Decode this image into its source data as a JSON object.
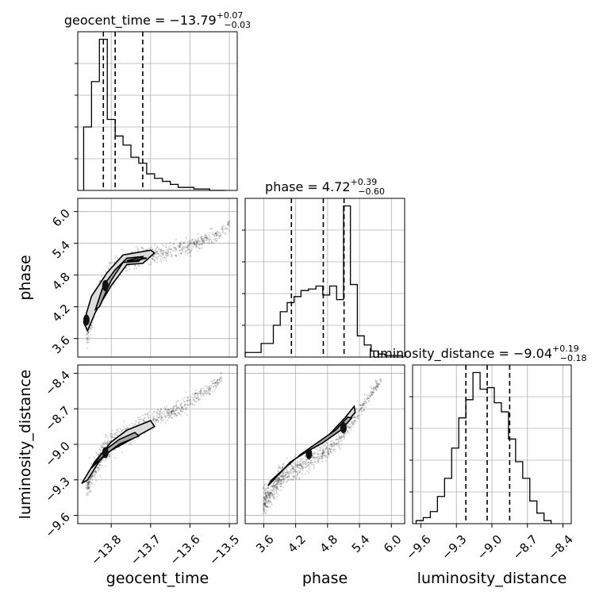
{
  "chart_data": {
    "type": "corner",
    "parameters": [
      "geocent_time",
      "phase",
      "luminosity_distance"
    ],
    "titles": [
      {
        "param": "geocent_time",
        "text": "geocent_time = −13.79",
        "plus": "+0.07",
        "minus": "−0.03"
      },
      {
        "param": "phase",
        "text": "phase = 4.72",
        "plus": "+0.39",
        "minus": "−0.60"
      },
      {
        "param": "luminosity_distance",
        "text": "luminosity_distance = −9.04",
        "plus": "+0.19",
        "minus": "−0.18"
      }
    ],
    "axes": {
      "geocent_time": {
        "label": "geocent_time",
        "range": [
          -13.885,
          -13.48
        ],
        "ticks": [
          -13.8,
          -13.7,
          -13.6,
          -13.5
        ],
        "tick_labels": [
          "−13.8",
          "−13.7",
          "−13.6",
          "−13.5"
        ]
      },
      "phase": {
        "label": "phase",
        "range": [
          3.25,
          6.25
        ],
        "ticks": [
          3.6,
          4.2,
          4.8,
          5.4,
          6.0
        ],
        "tick_labels": [
          "3.6",
          "4.2",
          "4.8",
          "5.4",
          "6.0"
        ]
      },
      "luminosity_distance": {
        "label": "luminosity_distance",
        "range": [
          -9.67,
          -8.33
        ],
        "ticks": [
          -9.6,
          -9.3,
          -9.0,
          -8.7,
          -8.4
        ],
        "tick_labels": [
          "−9.6",
          "−9.3",
          "−9.0",
          "−8.7",
          "−8.4"
        ]
      }
    },
    "histograms": {
      "geocent_time": {
        "edges": [
          -13.87,
          -13.85,
          -13.83,
          -13.81,
          -13.79,
          -13.77,
          -13.75,
          -13.73,
          -13.71,
          -13.69,
          -13.67,
          -13.65,
          -13.63,
          -13.61,
          -13.59,
          -13.57,
          -13.55,
          -13.53,
          -13.51
        ],
        "counts": [
          0.42,
          0.72,
          1.0,
          0.47,
          0.36,
          0.3,
          0.22,
          0.18,
          0.11,
          0.08,
          0.06,
          0.04,
          0.02,
          0.02,
          0.01,
          0.01,
          0.0,
          0.0
        ],
        "quantiles": [
          -13.82,
          -13.79,
          -13.72
        ]
      },
      "phase": {
        "edges": [
          3.25,
          3.55,
          3.78,
          3.91,
          4.04,
          4.17,
          4.3,
          4.44,
          4.58,
          4.71,
          4.84,
          4.97,
          5.1,
          5.23,
          5.36,
          5.49,
          5.62,
          5.75,
          5.88,
          6.01,
          6.2
        ],
        "counts": [
          0.03,
          0.09,
          0.21,
          0.3,
          0.36,
          0.4,
          0.44,
          0.45,
          0.47,
          0.41,
          0.47,
          0.38,
          1.0,
          0.48,
          0.14,
          0.08,
          0.04,
          0.02,
          0.01,
          0.01
        ],
        "quantiles": [
          4.12,
          4.72,
          5.11
        ]
      },
      "luminosity_distance": {
        "edges": [
          -9.64,
          -9.58,
          -9.52,
          -9.46,
          -9.4,
          -9.34,
          -9.28,
          -9.22,
          -9.16,
          -9.1,
          -9.04,
          -8.98,
          -8.92,
          -8.86,
          -8.8,
          -8.74,
          -8.68,
          -8.62,
          -8.56,
          -8.5
        ],
        "counts": [
          0.02,
          0.04,
          0.08,
          0.18,
          0.3,
          0.5,
          0.7,
          0.82,
          1.0,
          0.89,
          0.9,
          0.8,
          0.74,
          0.56,
          0.41,
          0.3,
          0.15,
          0.07,
          0.02
        ],
        "quantiles": [
          -9.22,
          -9.04,
          -8.85
        ]
      }
    },
    "joint": [
      {
        "x": "geocent_time",
        "y": "phase",
        "ridge": [
          [
            -13.86,
            3.7
          ],
          [
            -13.84,
            4.3
          ],
          [
            -13.82,
            4.6
          ],
          [
            -13.8,
            4.85
          ],
          [
            -13.77,
            5.05
          ],
          [
            -13.74,
            5.12
          ],
          [
            -13.7,
            5.18
          ],
          [
            -13.6,
            5.35
          ],
          [
            -13.53,
            5.55
          ],
          [
            -13.5,
            5.75
          ]
        ],
        "contours": [
          [
            [
              -13.87,
              3.9
            ],
            [
              -13.85,
              4.4
            ],
            [
              -13.81,
              4.85
            ],
            [
              -13.77,
              5.18
            ],
            [
              -13.7,
              5.27
            ],
            [
              -13.69,
              5.22
            ],
            [
              -13.72,
              5.02
            ],
            [
              -13.76,
              5.0
            ],
            [
              -13.8,
              4.6
            ],
            [
              -13.84,
              4.1
            ],
            [
              -13.86,
              3.75
            ]
          ],
          [
            [
              -13.84,
              4.15
            ],
            [
              -13.82,
              4.6
            ],
            [
              -13.79,
              4.9
            ],
            [
              -13.76,
              5.12
            ],
            [
              -13.72,
              5.15
            ],
            [
              -13.73,
              5.06
            ],
            [
              -13.77,
              5.04
            ],
            [
              -13.8,
              4.7
            ],
            [
              -13.83,
              4.2
            ]
          ],
          [
            [
              -13.76,
              5.07
            ],
            [
              -13.73,
              5.13
            ],
            [
              -13.71,
              5.12
            ],
            [
              -13.74,
              5.07
            ]
          ]
        ],
        "cores": [
          [
            -13.815,
            4.6
          ],
          [
            -13.863,
            3.95
          ]
        ]
      },
      {
        "x": "geocent_time",
        "y": "luminosity_distance",
        "ridge": [
          [
            -13.86,
            -9.35
          ],
          [
            -13.84,
            -9.2
          ],
          [
            -13.82,
            -9.07
          ],
          [
            -13.8,
            -9.0
          ],
          [
            -13.77,
            -8.93
          ],
          [
            -13.72,
            -8.83
          ],
          [
            -13.65,
            -8.74
          ],
          [
            -13.58,
            -8.6
          ],
          [
            -13.52,
            -8.45
          ]
        ],
        "contours": [
          [
            [
              -13.875,
              -9.33
            ],
            [
              -13.84,
              -9.14
            ],
            [
              -13.8,
              -8.98
            ],
            [
              -13.76,
              -8.88
            ],
            [
              -13.7,
              -8.8
            ],
            [
              -13.69,
              -8.85
            ],
            [
              -13.75,
              -8.96
            ],
            [
              -13.8,
              -9.05
            ],
            [
              -13.83,
              -9.14
            ],
            [
              -13.86,
              -9.3
            ]
          ],
          [
            [
              -13.85,
              -9.2
            ],
            [
              -13.82,
              -9.06
            ],
            [
              -13.78,
              -8.96
            ],
            [
              -13.74,
              -8.9
            ],
            [
              -13.73,
              -8.93
            ],
            [
              -13.78,
              -9.0
            ],
            [
              -13.82,
              -9.1
            ]
          ]
        ],
        "cores": [
          [
            -13.815,
            -9.07
          ]
        ]
      },
      {
        "x": "phase",
        "y": "luminosity_distance",
        "ridge": [
          [
            3.6,
            -9.5
          ],
          [
            3.9,
            -9.28
          ],
          [
            4.3,
            -9.18
          ],
          [
            4.7,
            -9.08
          ],
          [
            5.0,
            -8.98
          ],
          [
            5.25,
            -8.82
          ],
          [
            5.5,
            -8.65
          ],
          [
            5.8,
            -8.45
          ]
        ],
        "contours": [
          [
            [
              3.68,
              -9.35
            ],
            [
              4.1,
              -9.15
            ],
            [
              4.6,
              -9.0
            ],
            [
              4.95,
              -8.9
            ],
            [
              5.15,
              -8.82
            ],
            [
              5.32,
              -8.73
            ],
            [
              5.3,
              -8.68
            ],
            [
              5.12,
              -8.78
            ],
            [
              4.7,
              -8.98
            ],
            [
              4.2,
              -9.12
            ],
            [
              3.75,
              -9.3
            ]
          ],
          [
            [
              4.25,
              -9.1
            ],
            [
              4.7,
              -8.99
            ],
            [
              5.05,
              -8.88
            ],
            [
              5.25,
              -8.78
            ],
            [
              5.18,
              -8.77
            ],
            [
              4.95,
              -8.88
            ],
            [
              4.5,
              -9.02
            ]
          ]
        ],
        "cores": [
          [
            5.1,
            -8.86
          ],
          [
            4.45,
            -9.08
          ]
        ]
      }
    ]
  }
}
